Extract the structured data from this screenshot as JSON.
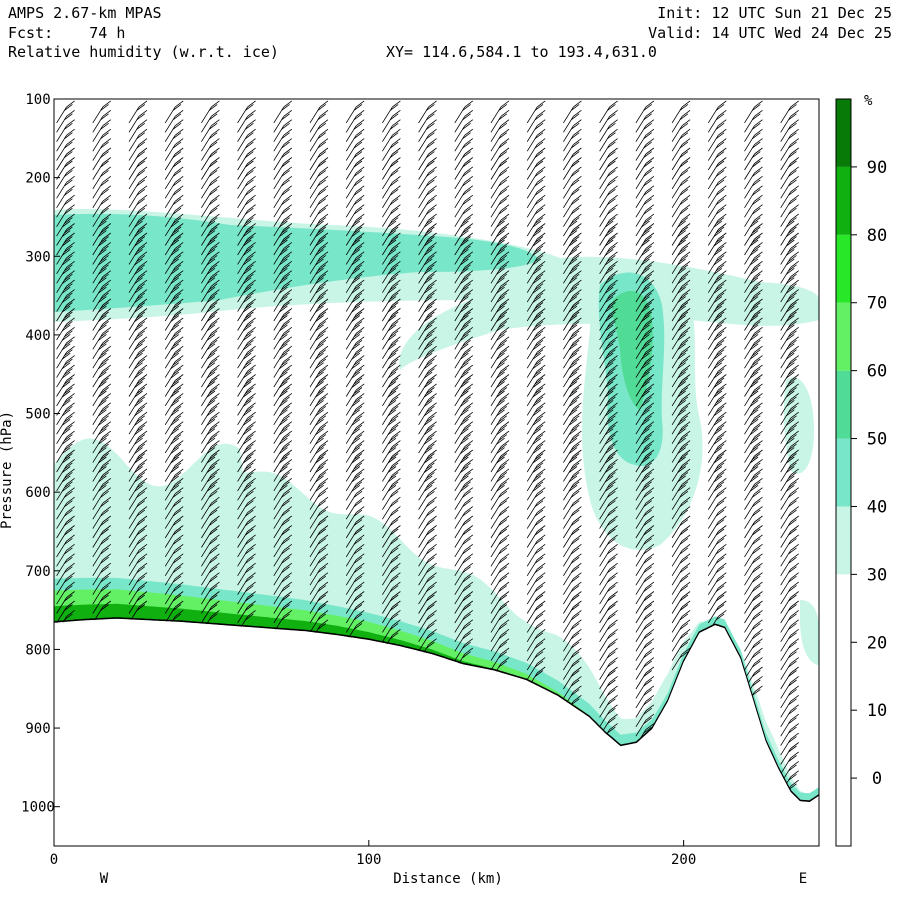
{
  "header": {
    "model": "AMPS 2.67-km MPAS",
    "forecast": "Fcst:    74 h",
    "field": "Relative humidity (w.r.t. ice)",
    "xy": "XY= 114.6,584.1 to 193.4,631.0",
    "init": "Init: 12 UTC Sun 21 Dec 25",
    "valid": "Valid: 14 UTC Wed 24 Dec 25"
  },
  "chart_data": {
    "type": "cross-section (filled contour with wind barbs)",
    "xlabel": "Distance (km)",
    "ylabel": "Pressure (hPa)",
    "x_ticks": [
      0,
      100,
      200
    ],
    "y_ticks": [
      100,
      200,
      300,
      400,
      500,
      600,
      700,
      800,
      900,
      1000
    ],
    "xlim": [
      0,
      243
    ],
    "ylim": [
      1050,
      100
    ],
    "x_end_labels": [
      "W",
      "E"
    ],
    "colorbar": {
      "unit": "%",
      "ticks": [
        0,
        10,
        20,
        30,
        40,
        50,
        60,
        70,
        80,
        90
      ],
      "levels": [
        {
          "from": -10,
          "to": 30,
          "color": "#ffffff"
        },
        {
          "from": 30,
          "to": 40,
          "color": "#c8f5e6"
        },
        {
          "from": 40,
          "to": 50,
          "color": "#78e6c8"
        },
        {
          "from": 50,
          "to": 60,
          "color": "#50dc96"
        },
        {
          "from": 60,
          "to": 70,
          "color": "#64f064"
        },
        {
          "from": 70,
          "to": 80,
          "color": "#28e628"
        },
        {
          "from": 80,
          "to": 90,
          "color": "#10b010"
        },
        {
          "from": 90,
          "to": 100,
          "color": "#087a08"
        }
      ]
    },
    "terrain": {
      "x": [
        0,
        10,
        20,
        30,
        40,
        50,
        60,
        70,
        80,
        90,
        100,
        110,
        120,
        130,
        140,
        150,
        160,
        170,
        175,
        180,
        185,
        190,
        195,
        200,
        205,
        210,
        213,
        218,
        222,
        226,
        230,
        234,
        237,
        240,
        243
      ],
      "p": [
        765,
        762,
        760,
        762,
        764,
        767,
        770,
        773,
        776,
        781,
        787,
        795,
        805,
        818,
        826,
        838,
        858,
        885,
        905,
        922,
        918,
        900,
        865,
        815,
        778,
        768,
        772,
        810,
        862,
        915,
        950,
        980,
        992,
        993,
        985
      ]
    }
  }
}
